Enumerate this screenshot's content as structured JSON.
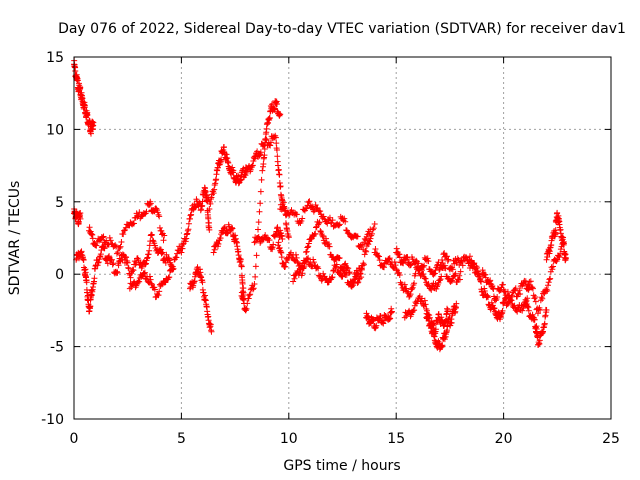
{
  "chart_data": {
    "type": "scatter",
    "title": "Day 076 of 2022, Sidereal Day-to-day VTEC variation (SDTVAR) for receiver dav1",
    "xlabel": "GPS time / hours",
    "ylabel": "SDTVAR / TECUs",
    "xlim": [
      0,
      25
    ],
    "ylim": [
      -10,
      15
    ],
    "xticks": [
      0,
      5,
      10,
      15,
      20,
      25
    ],
    "yticks": [
      -10,
      -5,
      0,
      5,
      10,
      15
    ],
    "grid": true,
    "marker": "+",
    "color": "#ff0000",
    "series": [
      {
        "name": "SDTVAR",
        "segments": [
          {
            "x": [
              0.0,
              0.1,
              0.2,
              0.3,
              0.4,
              0.5,
              0.6,
              0.7,
              0.8,
              0.9
            ],
            "y": [
              14.5,
              13.6,
              13.0,
              12.5,
              12.0,
              11.5,
              11.0,
              10.4,
              10.0,
              10.5
            ]
          },
          {
            "x": [
              0.0,
              0.1,
              0.2,
              0.3
            ],
            "y": [
              4.2,
              4.0,
              3.8,
              3.9
            ]
          },
          {
            "x": [
              0.1,
              0.3,
              0.5,
              0.6,
              0.7,
              0.8,
              1.0,
              1.3,
              1.6,
              2.0,
              2.3,
              2.6,
              3.0,
              3.3,
              3.6,
              4.0,
              4.3,
              4.6,
              5.0
            ],
            "y": [
              1.0,
              1.5,
              0.5,
              -1.0,
              -2.5,
              -1.5,
              0.5,
              1.8,
              1.0,
              0.2,
              1.5,
              0.0,
              1.0,
              0.5,
              2.5,
              1.5,
              1.0,
              0.5,
              2.0
            ]
          },
          {
            "x": [
              0.7,
              1.0,
              1.5,
              2.0,
              2.5,
              3.0,
              3.5,
              3.8,
              4.2
            ],
            "y": [
              3.0,
              2.0,
              2.5,
              1.5,
              3.5,
              4.0,
              4.8,
              4.5,
              2.5
            ]
          },
          {
            "x": [
              2.6,
              3.0,
              3.4,
              3.8,
              4.2,
              4.6
            ],
            "y": [
              -1.0,
              -0.5,
              0.0,
              -1.5,
              -0.5,
              0.5
            ]
          },
          {
            "x": [
              5.0,
              5.3,
              5.6,
              5.9,
              6.1,
              6.2,
              6.3
            ],
            "y": [
              1.5,
              3.0,
              5.0,
              4.5,
              6.0,
              5.0,
              3.0
            ]
          },
          {
            "x": [
              5.4,
              5.6,
              5.8,
              6.0,
              6.2,
              6.4
            ],
            "y": [
              -1.0,
              -0.5,
              0.5,
              -1.0,
              -2.5,
              -4.0
            ]
          },
          {
            "x": [
              6.3,
              6.6,
              6.8,
              7.0,
              7.2,
              7.4,
              7.6,
              7.8,
              8.0
            ],
            "y": [
              4.5,
              6.5,
              8.0,
              8.5,
              7.5,
              7.0,
              6.5,
              6.8,
              7.2
            ]
          },
          {
            "x": [
              6.5,
              6.8,
              7.1,
              7.4,
              7.6,
              7.8,
              7.9
            ],
            "y": [
              1.5,
              2.5,
              3.2,
              2.8,
              2.0,
              0.5,
              -1.5
            ]
          },
          {
            "x": [
              7.8,
              8.0,
              8.4,
              8.8,
              9.0,
              9.2,
              9.4,
              9.6
            ],
            "y": [
              -1.5,
              -2.5,
              -0.5,
              7.5,
              10.5,
              11.5,
              11.8,
              11.0
            ]
          },
          {
            "x": [
              8.0,
              8.3,
              8.6,
              9.0,
              9.4,
              9.6,
              9.8,
              10.0
            ],
            "y": [
              7.0,
              7.5,
              8.5,
              9.0,
              9.5,
              6.0,
              4.5,
              2.5
            ]
          },
          {
            "x": [
              8.4,
              8.8,
              9.2,
              9.5,
              9.7
            ],
            "y": [
              2.2,
              2.5,
              2.0,
              3.0,
              2.5
            ]
          },
          {
            "x": [
              9.5,
              9.8,
              10.2,
              10.6,
              11.0,
              11.4,
              11.8,
              12.2,
              12.6,
              13.0,
              13.4,
              13.8
            ],
            "y": [
              2.0,
              0.5,
              1.5,
              0.0,
              2.5,
              3.5,
              2.0,
              1.0,
              0.5,
              -0.5,
              0.5,
              2.5
            ]
          },
          {
            "x": [
              9.6,
              10.0,
              10.5,
              11.0,
              11.5,
              12.0,
              12.5,
              13.0,
              13.5,
              14.0
            ],
            "y": [
              4.5,
              4.2,
              3.8,
              4.8,
              4.2,
              3.5,
              3.8,
              2.5,
              2.0,
              3.5
            ]
          },
          {
            "x": [
              10.2,
              10.6,
              11.0,
              11.4,
              11.8,
              12.2,
              12.6,
              13.0,
              13.4
            ],
            "y": [
              -0.5,
              0.5,
              1.0,
              0.0,
              -0.5,
              0.5,
              0.0,
              -0.8,
              0.2
            ]
          },
          {
            "x": [
              13.6,
              13.8,
              14.0,
              14.3,
              14.6,
              14.8
            ],
            "y": [
              -3.0,
              -3.3,
              -3.4,
              -3.2,
              -3.0,
              -2.6
            ]
          },
          {
            "x": [
              14.0,
              14.4,
              14.8,
              15.2,
              15.6,
              16.0,
              16.4,
              16.8,
              17.2,
              17.6,
              18.0,
              18.4,
              18.8
            ],
            "y": [
              1.5,
              0.5,
              1.0,
              -0.5,
              -1.5,
              0.5,
              1.0,
              0.0,
              1.2,
              0.5,
              1.0,
              0.8,
              0.2
            ]
          },
          {
            "x": [
              15.0,
              15.3,
              15.6,
              16.0,
              16.4,
              16.8,
              17.2,
              17.6,
              18.0
            ],
            "y": [
              1.5,
              0.8,
              1.0,
              0.5,
              -0.5,
              -1.0,
              0.5,
              -0.5,
              0.0
            ]
          },
          {
            "x": [
              15.4,
              15.8,
              16.2,
              16.6,
              16.8,
              17.0,
              17.2,
              17.4,
              17.6,
              17.8
            ],
            "y": [
              -3.0,
              -2.5,
              -1.5,
              -3.5,
              -4.5,
              -5.0,
              -4.5,
              -3.5,
              -3.0,
              -2.0
            ]
          },
          {
            "x": [
              16.4,
              16.6,
              16.8,
              17.0,
              17.2,
              17.4
            ],
            "y": [
              -3.0,
              -3.5,
              -3.8,
              -3.0,
              -3.5,
              -2.5
            ]
          },
          {
            "x": [
              18.4,
              18.8,
              19.0,
              19.3,
              19.6,
              19.8,
              20.0,
              20.4,
              20.8,
              21.2,
              21.6,
              22.0,
              22.4,
              22.8
            ],
            "y": [
              1.0,
              0.0,
              -1.0,
              -2.0,
              -2.5,
              -3.0,
              -2.0,
              -1.5,
              -1.0,
              -0.5,
              -2.5,
              -1.0,
              1.0,
              2.0
            ]
          },
          {
            "x": [
              19.0,
              19.3,
              19.6,
              20.0,
              20.4,
              20.8,
              21.2
            ],
            "y": [
              0.0,
              -0.5,
              -1.5,
              -1.0,
              -2.0,
              -2.5,
              -1.0
            ]
          },
          {
            "x": [
              21.0,
              21.3,
              21.5,
              21.6,
              21.8,
              22.0
            ],
            "y": [
              -2.0,
              -3.0,
              -3.5,
              -4.8,
              -4.0,
              -2.5
            ]
          },
          {
            "x": [
              22.0,
              22.2,
              22.4,
              22.5,
              22.6,
              22.8,
              22.9
            ],
            "y": [
              1.0,
              2.0,
              3.0,
              4.0,
              3.5,
              2.0,
              1.0
            ]
          }
        ]
      }
    ]
  }
}
